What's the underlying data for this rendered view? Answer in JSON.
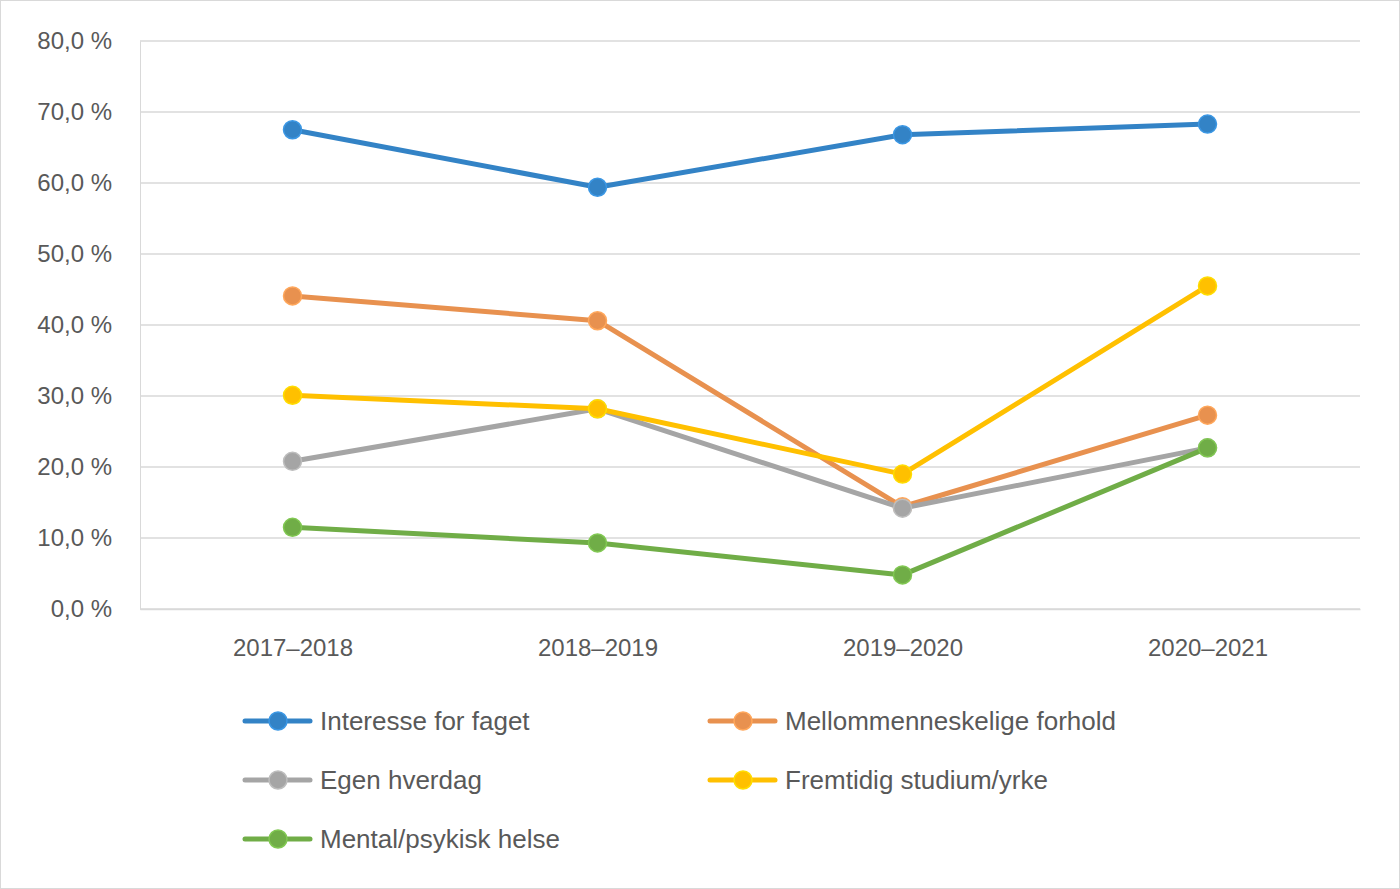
{
  "chart_data": {
    "type": "line",
    "categories": [
      "2017–2018",
      "2018–2019",
      "2019–2020",
      "2020–2021"
    ],
    "series": [
      {
        "name": "Interesse for faget",
        "color": "#3383c6",
        "values": [
          67.5,
          59.4,
          66.8,
          68.3
        ]
      },
      {
        "name": "Mellommenneskelige forhold",
        "color": "#e8914f",
        "values": [
          44.1,
          40.6,
          14.4,
          27.3
        ]
      },
      {
        "name": "Egen hverdag",
        "color": "#a5a5a5",
        "values": [
          20.8,
          28.2,
          14.2,
          22.7
        ]
      },
      {
        "name": "Fremtidig studium/yrke",
        "color": "#ffc000",
        "values": [
          30.1,
          28.2,
          19.0,
          45.5
        ]
      },
      {
        "name": "Mental/psykisk helse",
        "color": "#70ad47",
        "values": [
          11.5,
          9.3,
          4.8,
          22.7
        ]
      }
    ],
    "ylim": [
      0,
      80
    ],
    "yticks": [
      {
        "value": 0,
        "label": "0,0 %"
      },
      {
        "value": 10,
        "label": "10,0 %"
      },
      {
        "value": 20,
        "label": "20,0 %"
      },
      {
        "value": 30,
        "label": "30,0 %"
      },
      {
        "value": 40,
        "label": "40,0 %"
      },
      {
        "value": 50,
        "label": "50,0 %"
      },
      {
        "value": 60,
        "label": "60,0 %"
      },
      {
        "value": 70,
        "label": "70,0 %"
      },
      {
        "value": 80,
        "label": "80,0 %"
      }
    ],
    "grid": true,
    "marker": "circle",
    "legend": "bottom"
  }
}
